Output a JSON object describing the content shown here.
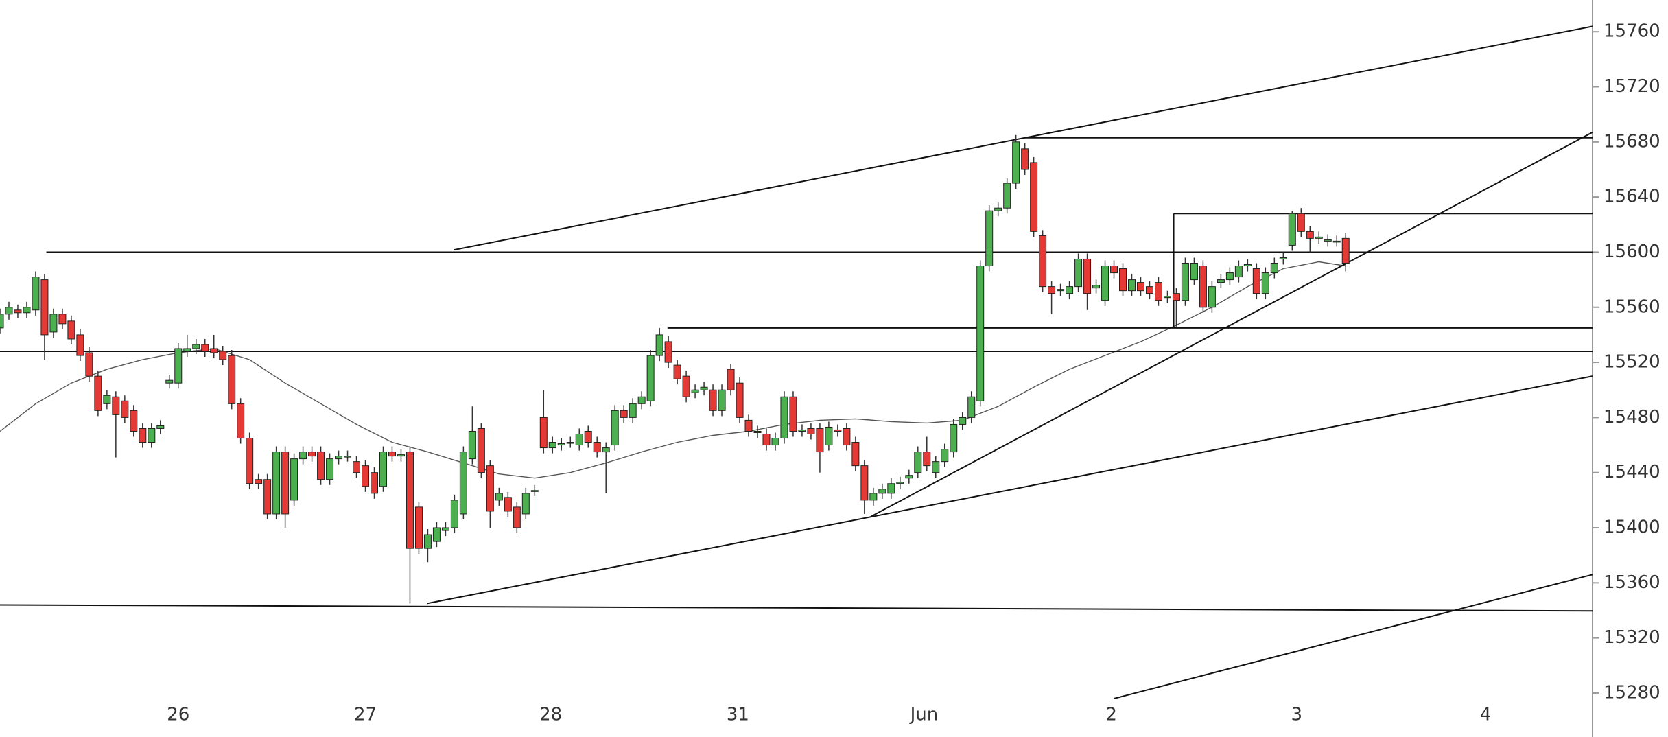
{
  "chart_data": {
    "type": "candlestick",
    "ylim": [
      15275,
      15783
    ],
    "yticks": [
      15280,
      15320,
      15360,
      15400,
      15440,
      15480,
      15520,
      15560,
      15600,
      15640,
      15680,
      15720,
      15760
    ],
    "xlim": [
      0,
      178.7
    ],
    "xticks": [
      {
        "value": 20,
        "label": "26"
      },
      {
        "value": 41,
        "label": "27"
      },
      {
        "value": 61.8,
        "label": "28"
      },
      {
        "value": 82.8,
        "label": "31"
      },
      {
        "value": 103.7,
        "label": "Jun"
      },
      {
        "value": 124.7,
        "label": "2"
      },
      {
        "value": 145.5,
        "label": "3"
      },
      {
        "value": 166.7,
        "label": "4"
      }
    ],
    "up_color": "#4caf50",
    "down_color": "#e53935",
    "open": [
      15545,
      15555,
      15558,
      15556,
      15558,
      15580,
      15542,
      15555,
      15550,
      15540,
      15527,
      15510,
      15490,
      15495,
      15492,
      15485,
      15472,
      15462,
      15472,
      15505,
      15505,
      15528,
      15530,
      15533,
      15530,
      15528,
      15525,
      15490,
      15465,
      15435,
      15435,
      15410,
      15455,
      15420,
      15450,
      15455,
      15455,
      15435,
      15450,
      15452,
      15448,
      15445,
      15440,
      15430,
      15455,
      15452,
      15455,
      15415,
      15385,
      15390,
      15398,
      15400,
      15410,
      15450,
      15472,
      15445,
      15420,
      15422,
      15415,
      15410,
      15427,
      15480,
      15458,
      15460,
      15462,
      15460,
      15470,
      15462,
      15455,
      15460,
      15485,
      15480,
      15490,
      15492,
      15525,
      15535,
      15518,
      15510,
      15498,
      15500,
      15500,
      15485,
      15515,
      15505,
      15478,
      15470,
      15468,
      15460,
      15465,
      15495,
      15470,
      15472,
      15472,
      15460,
      15471,
      15472,
      15462,
      15445,
      15420,
      15425,
      15425,
      15432,
      15436,
      15440,
      15455,
      15440,
      15448,
      15455,
      15475,
      15480,
      15492,
      15590,
      15630,
      15632,
      15650,
      15675,
      15665,
      15612,
      15575,
      15572,
      15570,
      15575,
      15595,
      15574,
      15565,
      15590,
      15588,
      15572,
      15578,
      15575,
      15578,
      15567,
      15570,
      15565,
      15580,
      15590,
      15560,
      15578,
      15580,
      15582,
      15590,
      15588,
      15570,
      15585,
      15595,
      15605,
      15628,
      15615,
      15610,
      15608,
      15608,
      15610
    ],
    "high": [
      15559,
      15564,
      15562,
      15564,
      15586,
      15584,
      15559,
      15559,
      15554,
      15544,
      15531,
      15514,
      15500,
      15499,
      15496,
      15489,
      15476,
      15476,
      15478,
      15511,
      15534,
      15540,
      15537,
      15537,
      15540,
      15532,
      15529,
      15494,
      15469,
      15439,
      15439,
      15459,
      15459,
      15454,
      15459,
      15459,
      15459,
      15454,
      15456,
      15456,
      15452,
      15449,
      15444,
      15459,
      15459,
      15457,
      15459,
      15419,
      15399,
      15404,
      15404,
      15424,
      15459,
      15488,
      15476,
      15449,
      15429,
      15426,
      15419,
      15429,
      15431,
      15500,
      15466,
      15465,
      15466,
      15472,
      15474,
      15466,
      15462,
      15489,
      15489,
      15494,
      15499,
      15529,
      15545,
      15539,
      15522,
      15514,
      15504,
      15506,
      15504,
      15504,
      15519,
      15509,
      15482,
      15474,
      15472,
      15469,
      15499,
      15499,
      15475,
      15476,
      15476,
      15477,
      15475,
      15476,
      15466,
      15449,
      15429,
      15432,
      15436,
      15437,
      15442,
      15459,
      15466,
      15452,
      15461,
      15479,
      15484,
      15499,
      15594,
      15634,
      15636,
      15654,
      15685,
      15679,
      15669,
      15616,
      15579,
      15577,
      15579,
      15599,
      15599,
      15580,
      15594,
      15594,
      15592,
      15584,
      15582,
      15579,
      15582,
      15572,
      15574,
      15596,
      15596,
      15594,
      15579,
      15584,
      15589,
      15594,
      15595,
      15592,
      15589,
      15596,
      15600,
      15630,
      15632,
      15619,
      15615,
      15613,
      15612,
      15614
    ],
    "low": [
      15541,
      15551,
      15552,
      15552,
      15554,
      15522,
      15538,
      15544,
      15533,
      15521,
      15506,
      15481,
      15486,
      15451,
      15476,
      15466,
      15458,
      15458,
      15468,
      15501,
      15501,
      15524,
      15526,
      15524,
      15523,
      15518,
      15486,
      15461,
      15428,
      15428,
      15406,
      15406,
      15400,
      15416,
      15446,
      15448,
      15431,
      15431,
      15446,
      15448,
      15436,
      15426,
      15421,
      15426,
      15448,
      15448,
      15345,
      15381,
      15375,
      15386,
      15394,
      15396,
      15406,
      15446,
      15436,
      15400,
      15416,
      15408,
      15396,
      15406,
      15423,
      15454,
      15454,
      15456,
      15458,
      15456,
      15458,
      15451,
      15425,
      15456,
      15476,
      15476,
      15486,
      15488,
      15521,
      15516,
      15504,
      15491,
      15494,
      15496,
      15481,
      15481,
      15496,
      15476,
      15466,
      15465,
      15456,
      15456,
      15461,
      15466,
      15466,
      15464,
      15440,
      15456,
      15466,
      15456,
      15441,
      15410,
      15416,
      15421,
      15421,
      15428,
      15432,
      15436,
      15441,
      15436,
      15444,
      15451,
      15471,
      15476,
      15488,
      15586,
      15626,
      15628,
      15646,
      15656,
      15611,
      15571,
      15555,
      15568,
      15566,
      15571,
      15558,
      15570,
      15561,
      15581,
      15568,
      15568,
      15568,
      15566,
      15561,
      15563,
      15546,
      15561,
      15576,
      15556,
      15556,
      15574,
      15576,
      15578,
      15586,
      15566,
      15566,
      15581,
      15591,
      15601,
      15611,
      15600,
      15606,
      15604,
      15604,
      15586
    ],
    "close": [
      15555,
      15560,
      15556,
      15560,
      15582,
      15540,
      15555,
      15548,
      15537,
      15525,
      15510,
      15485,
      15496,
      15482,
      15480,
      15470,
      15462,
      15472,
      15474,
      15507,
      15530,
      15530,
      15533,
      15528,
      15527,
      15522,
      15490,
      15465,
      15432,
      15432,
      15410,
      15455,
      15410,
      15450,
      15455,
      15452,
      15435,
      15450,
      15452,
      15452,
      15440,
      15430,
      15425,
      15455,
      15452,
      15453,
      15385,
      15385,
      15395,
      15400,
      15400,
      15420,
      15455,
      15470,
      15440,
      15412,
      15425,
      15412,
      15400,
      15425,
      15427,
      15458,
      15462,
      15461,
      15462,
      15468,
      15462,
      15455,
      15458,
      15485,
      15480,
      15490,
      15495,
      15525,
      15540,
      15520,
      15508,
      15495,
      15500,
      15502,
      15485,
      15500,
      15500,
      15480,
      15470,
      15469,
      15460,
      15465,
      15495,
      15470,
      15471,
      15468,
      15455,
      15473,
      15470,
      15460,
      15445,
      15420,
      15425,
      15428,
      15432,
      15433,
      15438,
      15455,
      15445,
      15448,
      15457,
      15475,
      15480,
      15495,
      15590,
      15630,
      15632,
      15650,
      15680,
      15660,
      15615,
      15575,
      15570,
      15573,
      15575,
      15595,
      15570,
      15576,
      15590,
      15585,
      15572,
      15580,
      15572,
      15570,
      15565,
      15568,
      15565,
      15592,
      15592,
      15560,
      15575,
      15580,
      15585,
      15590,
      15591,
      15570,
      15585,
      15592,
      15596,
      15628,
      15615,
      15610,
      15611,
      15609,
      15608,
      15592
    ],
    "moving_average": {
      "color": "#555555",
      "x": [
        0,
        4,
        8,
        12,
        16,
        20,
        24,
        28,
        32,
        36,
        40,
        44,
        48,
        52,
        56,
        60,
        64,
        68,
        72,
        76,
        80,
        84,
        88,
        92,
        96,
        100,
        104,
        108,
        112,
        116,
        120,
        124,
        128,
        132,
        136,
        140,
        144,
        148,
        151
      ],
      "values": [
        15470,
        15490,
        15505,
        15515,
        15522,
        15527,
        15530,
        15522,
        15505,
        15490,
        15475,
        15462,
        15455,
        15447,
        15439,
        15436,
        15440,
        15447,
        15455,
        15462,
        15467,
        15470,
        15475,
        15478,
        15479,
        15477,
        15476,
        15478,
        15488,
        15502,
        15515,
        15525,
        15535,
        15547,
        15560,
        15575,
        15588,
        15593,
        15590
      ]
    },
    "trendlines": [
      {
        "x": [
          50.9,
          178.7
        ],
        "y": [
          15601.6,
          15763.9
        ]
      },
      {
        "x": [
          115,
          178.7
        ],
        "y": [
          15683,
          15683
        ]
      },
      {
        "x": [
          5.2,
          178.7
        ],
        "y": [
          15600,
          15600
        ]
      },
      {
        "x": [
          131.7,
          178.7
        ],
        "y": [
          15628,
          15628
        ]
      },
      {
        "x": [
          131.7,
          131.7
        ],
        "y": [
          15628,
          15546
        ]
      },
      {
        "x": [
          74.9,
          178.7
        ],
        "y": [
          15545,
          15545
        ]
      },
      {
        "x": [
          0,
          178.7
        ],
        "y": [
          15528,
          15528
        ]
      },
      {
        "x": [
          97.7,
          178.7
        ],
        "y": [
          15408,
          15687
        ]
      },
      {
        "x": [
          47.9,
          178.7
        ],
        "y": [
          15345,
          15510
        ]
      },
      {
        "x": [
          0,
          178.7
        ],
        "y": [
          15344,
          15339.6
        ]
      },
      {
        "x": [
          125,
          178.7
        ],
        "y": [
          15276,
          15366
        ]
      }
    ]
  }
}
